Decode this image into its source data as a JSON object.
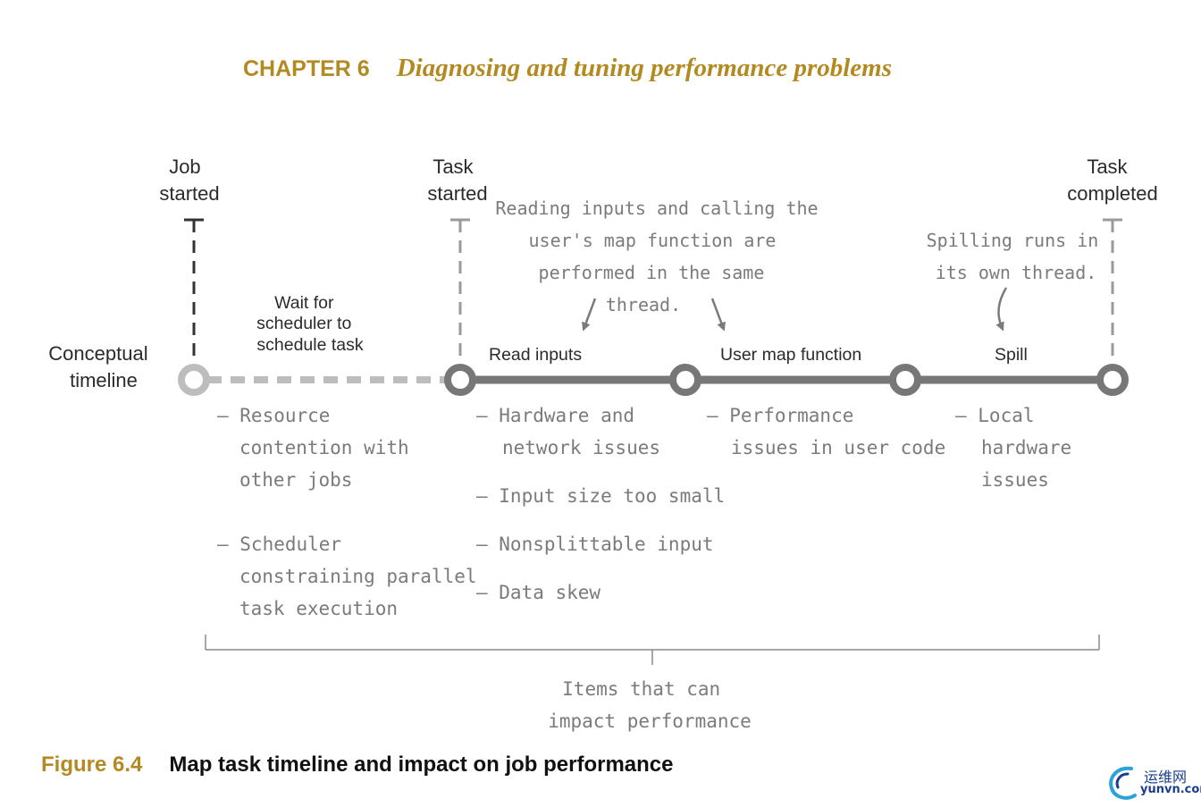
{
  "header": {
    "chapter": "CHAPTER 6",
    "title": "Diagnosing and tuning performance problems"
  },
  "timeline": {
    "label": [
      "Conceptual",
      "timeline"
    ],
    "markers": {
      "job_started": [
        "Job",
        "started"
      ],
      "task_started": [
        "Task",
        "started"
      ],
      "task_completed": [
        "Task",
        "completed"
      ]
    },
    "phases": {
      "wait": [
        "Wait for",
        "scheduler to",
        "schedule task"
      ],
      "read_inputs": "Read inputs",
      "user_map_function": "User map function",
      "spill": "Spill"
    }
  },
  "annotations": {
    "map_thread": [
      "Reading inputs and calling the",
      "user's map function are",
      "performed in the same",
      "thread."
    ],
    "spill_thread": [
      "Spilling runs in",
      "its own thread."
    ]
  },
  "issues": {
    "wait": [
      [
        "– Resource",
        "contention with",
        "other jobs"
      ],
      [
        "– Scheduler",
        "constraining parallel",
        "task execution"
      ]
    ],
    "read_inputs": [
      [
        "– Hardware and",
        "network issues"
      ],
      [
        "– Input size too small"
      ],
      [
        "– Nonsplittable input"
      ],
      [
        "– Data skew"
      ]
    ],
    "user_map_function": [
      [
        "– Performance",
        "issues in user code"
      ]
    ],
    "spill": [
      [
        "– Local",
        "hardware",
        "issues"
      ]
    ]
  },
  "bracket_label": [
    "Items that can",
    "impact performance"
  ],
  "caption": {
    "number": "Figure 6.4",
    "text": "Map task timeline and impact on job performance"
  },
  "watermark": {
    "cn": "运维网",
    "en": "yunvn.com"
  },
  "colors": {
    "accent": "#b38a22",
    "timeline_solid": "#777777",
    "timeline_dashed": "#bdbdbd",
    "handwriting": "#7b7b7b",
    "watermark": "#1a3e8f"
  }
}
